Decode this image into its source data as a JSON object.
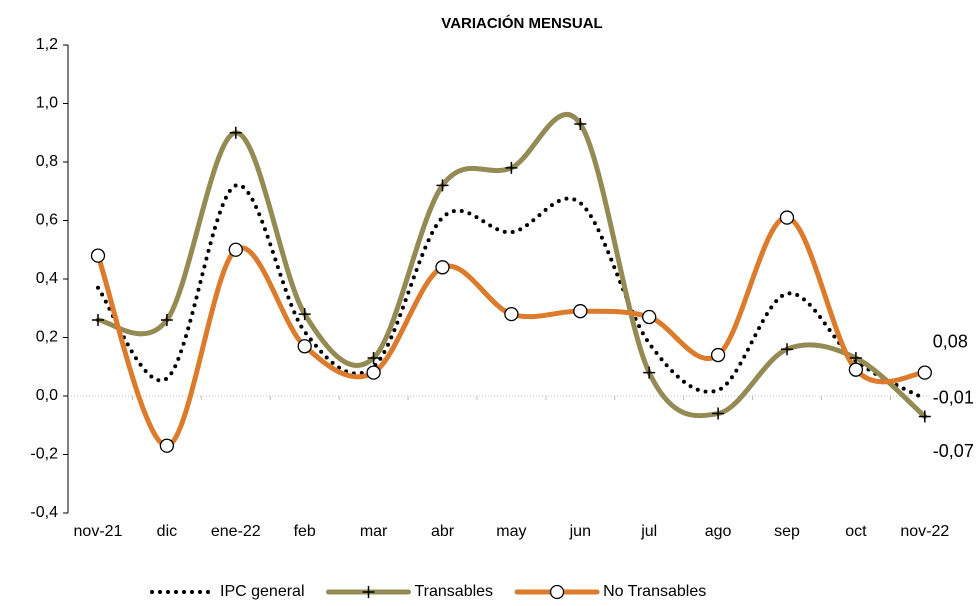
{
  "chart_data": {
    "type": "line",
    "title": "VARIACIÓN MENSUAL",
    "categories": [
      "nov-21",
      "dic",
      "ene-22",
      "feb",
      "mar",
      "abr",
      "may",
      "jun",
      "jul",
      "ago",
      "sep",
      "oct",
      "nov-22"
    ],
    "series": [
      {
        "name": "IPC general",
        "color": "#000000",
        "values": [
          0.37,
          0.06,
          0.72,
          0.22,
          0.1,
          0.61,
          0.56,
          0.66,
          0.18,
          0.02,
          0.35,
          0.12,
          -0.01
        ],
        "value_labels": [
          null,
          null,
          null,
          null,
          null,
          null,
          null,
          null,
          null,
          null,
          null,
          null,
          "-0,01"
        ]
      },
      {
        "name": "Transables",
        "color": "#948a54",
        "values": [
          0.26,
          0.26,
          0.9,
          0.28,
          0.13,
          0.72,
          0.78,
          0.93,
          0.08,
          -0.06,
          0.16,
          0.13,
          -0.07
        ],
        "value_labels": [
          null,
          null,
          null,
          null,
          null,
          null,
          null,
          null,
          null,
          null,
          null,
          null,
          "-0,07"
        ]
      },
      {
        "name": "No Transables",
        "color": "#db7b2b",
        "values": [
          0.48,
          -0.17,
          0.5,
          0.17,
          0.08,
          0.44,
          0.28,
          0.29,
          0.27,
          0.14,
          0.61,
          0.09,
          0.08
        ],
        "value_labels": [
          null,
          null,
          null,
          null,
          null,
          null,
          null,
          null,
          null,
          null,
          null,
          null,
          "0,08"
        ]
      }
    ],
    "ylim": [
      -0.4,
      1.2
    ],
    "yticks": [
      {
        "value": -0.4,
        "label": "-0,4"
      },
      {
        "value": -0.2,
        "label": "-0,2"
      },
      {
        "value": 0,
        "label": "0,0"
      },
      {
        "value": 0.2,
        "label": "0,2"
      },
      {
        "value": 0.4,
        "label": "0,4"
      },
      {
        "value": 0.6,
        "label": "0,6"
      },
      {
        "value": 0.8,
        "label": "0,8"
      },
      {
        "value": 1.0,
        "label": "1,0"
      },
      {
        "value": 1.2,
        "label": "1,2"
      }
    ],
    "grid": false,
    "legend": "bottom"
  }
}
